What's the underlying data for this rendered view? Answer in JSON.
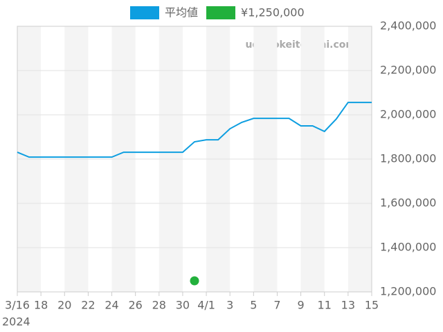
{
  "chart_data": {
    "type": "line",
    "watermark": "udedokeitoushi.com",
    "x": [
      "2024-03-16",
      "2024-03-17",
      "2024-03-18",
      "2024-03-19",
      "2024-03-20",
      "2024-03-21",
      "2024-03-22",
      "2024-03-23",
      "2024-03-24",
      "2024-03-25",
      "2024-03-26",
      "2024-03-27",
      "2024-03-28",
      "2024-03-29",
      "2024-03-30",
      "2024-03-31",
      "2024-04-01",
      "2024-04-02",
      "2024-04-03",
      "2024-04-04",
      "2024-04-05",
      "2024-04-06",
      "2024-04-07",
      "2024-04-08",
      "2024-04-09",
      "2024-04-10",
      "2024-04-11",
      "2024-04-12",
      "2024-04-13",
      "2024-04-14",
      "2024-04-15"
    ],
    "series": [
      {
        "name": "平均値",
        "color": "#0d9ee0",
        "mode": "line",
        "values": [
          1831000,
          1809000,
          1809000,
          1809000,
          1809000,
          1809000,
          1809000,
          1809000,
          1809000,
          1831000,
          1831000,
          1831000,
          1831000,
          1831000,
          1831000,
          1878000,
          1887000,
          1887000,
          1937000,
          1966000,
          1984000,
          1984000,
          1984000,
          1984000,
          1950000,
          1950000,
          1925000,
          1981000,
          2056000,
          2056000,
          2056000
        ]
      },
      {
        "name": "¥1,250,000",
        "color": "#22b03c",
        "mode": "points",
        "values": [
          null,
          null,
          null,
          null,
          null,
          null,
          null,
          null,
          null,
          null,
          null,
          null,
          null,
          null,
          null,
          1250000,
          null,
          null,
          null,
          null,
          null,
          null,
          null,
          null,
          null,
          null,
          null,
          null,
          null,
          null,
          null
        ]
      }
    ],
    "xlim": [
      "2024-03-16",
      "2024-04-15"
    ],
    "xticks": [
      {
        "value": "2024-03-16",
        "label": "3/16"
      },
      {
        "value": "2024-03-18",
        "label": "18"
      },
      {
        "value": "2024-03-20",
        "label": "20"
      },
      {
        "value": "2024-03-22",
        "label": "22"
      },
      {
        "value": "2024-03-24",
        "label": "24"
      },
      {
        "value": "2024-03-26",
        "label": "26"
      },
      {
        "value": "2024-03-28",
        "label": "28"
      },
      {
        "value": "2024-03-30",
        "label": "30"
      },
      {
        "value": "2024-04-01",
        "label": "4/1"
      },
      {
        "value": "2024-04-03",
        "label": "3"
      },
      {
        "value": "2024-04-05",
        "label": "5"
      },
      {
        "value": "2024-04-07",
        "label": "7"
      },
      {
        "value": "2024-04-09",
        "label": "9"
      },
      {
        "value": "2024-04-11",
        "label": "11"
      },
      {
        "value": "2024-04-13",
        "label": "13"
      },
      {
        "value": "2024-04-15",
        "label": "15"
      }
    ],
    "x_year_label": "2024",
    "ylim": [
      1200000,
      2400000
    ],
    "yticks": [
      {
        "value": 1200000,
        "label": "1,200,000"
      },
      {
        "value": 1400000,
        "label": "1,400,000"
      },
      {
        "value": 1600000,
        "label": "1,600,000"
      },
      {
        "value": 1800000,
        "label": "1,800,000"
      },
      {
        "value": 2000000,
        "label": "2,000,000"
      },
      {
        "value": 2200000,
        "label": "2,200,000"
      },
      {
        "value": 2400000,
        "label": "2,400,000"
      }
    ],
    "grid": true,
    "legend": "top"
  }
}
